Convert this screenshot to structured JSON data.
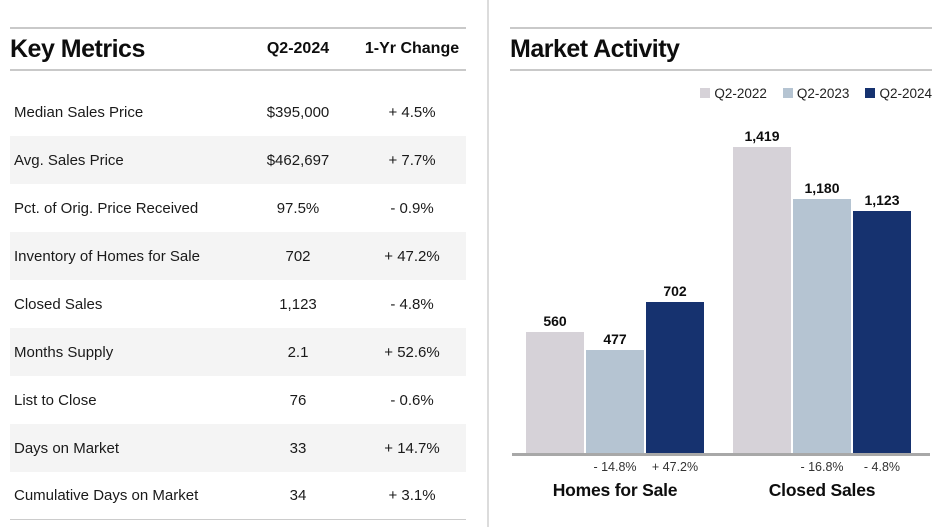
{
  "key_metrics": {
    "title": "Key Metrics",
    "col_period": "Q2-2024",
    "col_change": "1-Yr Change",
    "rows": [
      {
        "label": "Median Sales Price",
        "value": "$395,000",
        "change": "+ 4.5%"
      },
      {
        "label": "Avg. Sales Price",
        "value": "$462,697",
        "change": "+ 7.7%"
      },
      {
        "label": "Pct. of Orig. Price Received",
        "value": "97.5%",
        "change": "- 0.9%"
      },
      {
        "label": "Inventory of Homes for Sale",
        "value": "702",
        "change": "+ 47.2%"
      },
      {
        "label": "Closed Sales",
        "value": "1,123",
        "change": "- 4.8%"
      },
      {
        "label": "Months Supply",
        "value": "2.1",
        "change": "+ 52.6%"
      },
      {
        "label": "List to Close",
        "value": "76",
        "change": "- 0.6%"
      },
      {
        "label": "Days on Market",
        "value": "33",
        "change": "+ 14.7%"
      },
      {
        "label": "Cumulative Days on Market",
        "value": "34",
        "change": "+ 3.1%"
      }
    ]
  },
  "market_activity": {
    "title": "Market Activity"
  },
  "chart_data": {
    "type": "bar",
    "title": "Market Activity",
    "categories": [
      "Homes for Sale",
      "Closed Sales"
    ],
    "series": [
      {
        "name": "Q2-2022",
        "color": "#d6d2d8",
        "values": [
          560,
          1419
        ],
        "value_labels": [
          "560",
          "1,419"
        ],
        "pct_labels": [
          "",
          ""
        ]
      },
      {
        "name": "Q2-2023",
        "color": "#b5c4d2",
        "values": [
          477,
          1180
        ],
        "value_labels": [
          "477",
          "1,180"
        ],
        "pct_labels": [
          "- 14.8%",
          "- 16.8%"
        ]
      },
      {
        "name": "Q2-2024",
        "color": "#16326f",
        "values": [
          702,
          1123
        ],
        "value_labels": [
          "702",
          "1,123"
        ],
        "pct_labels": [
          "+ 47.2%",
          "- 4.8%"
        ]
      }
    ],
    "ylim": [
      0,
      1419
    ],
    "grid": false,
    "legend_position": "top-right",
    "axis_color": "#a8a8a8"
  }
}
